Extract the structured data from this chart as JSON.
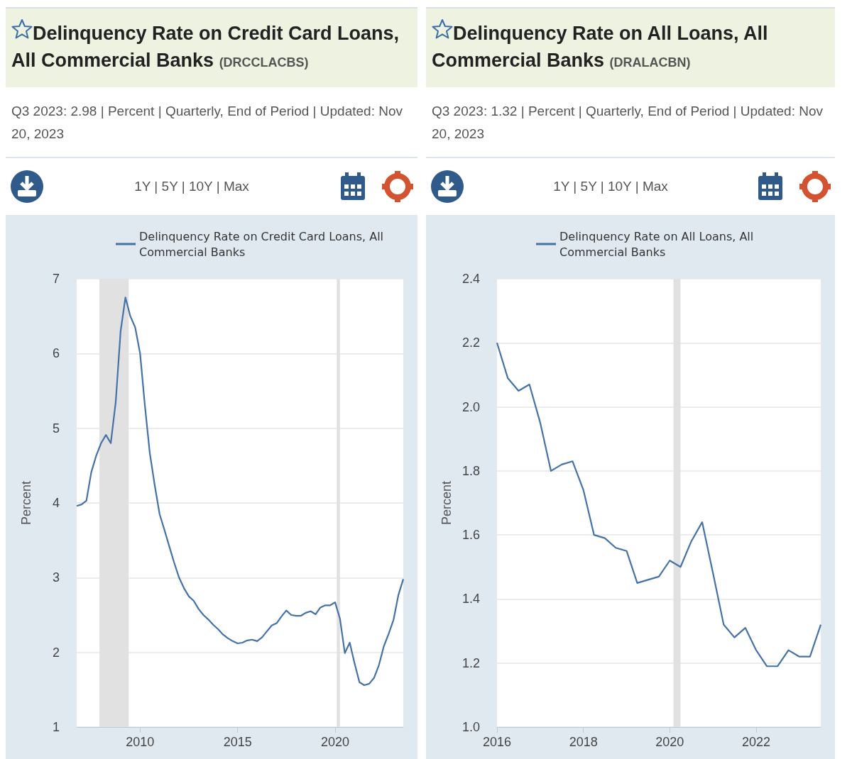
{
  "chart_data": [
    {
      "type": "line",
      "title": "Delinquency Rate on Credit Card Loans, All Commercial Banks",
      "subtitle": "(DRCCLACBS)",
      "annotations": [
        "Q3 2023: 2.98 | Percent | Quarterly, End of Period | Updated: Nov 20, 2023",
        "1Y | 5Y | 10Y | Max"
      ],
      "ylabel": "Percent",
      "x": [
        "2006-10",
        "2007-01",
        "2007-04",
        "2007-07",
        "2007-10",
        "2008-01",
        "2008-04",
        "2008-07",
        "2008-10",
        "2009-01",
        "2009-04",
        "2009-07",
        "2009-10",
        "2010-01",
        "2010-04",
        "2010-07",
        "2010-10",
        "2011-01",
        "2011-04",
        "2011-07",
        "2011-10",
        "2012-01",
        "2012-04",
        "2012-07",
        "2012-10",
        "2013-01",
        "2013-04",
        "2013-07",
        "2013-10",
        "2014-01",
        "2014-04",
        "2014-07",
        "2014-10",
        "2015-01",
        "2015-04",
        "2015-07",
        "2015-10",
        "2016-01",
        "2016-04",
        "2016-07",
        "2016-10",
        "2017-01",
        "2017-04",
        "2017-07",
        "2017-10",
        "2018-01",
        "2018-04",
        "2018-07",
        "2018-10",
        "2019-01",
        "2019-04",
        "2019-07",
        "2019-10",
        "2020-01",
        "2020-04",
        "2020-07",
        "2020-10",
        "2021-01",
        "2021-04",
        "2021-07",
        "2021-10",
        "2022-01",
        "2022-04",
        "2022-07",
        "2022-10",
        "2023-01",
        "2023-04",
        "2023-07"
      ],
      "series": [
        {
          "name": "Delinquency Rate on Credit Card Loans, All Commercial Banks",
          "color": "#4572a7",
          "values": [
            3.96,
            3.98,
            4.03,
            4.41,
            4.63,
            4.8,
            4.91,
            4.8,
            5.35,
            6.3,
            6.75,
            6.5,
            6.35,
            6.0,
            5.3,
            4.67,
            4.24,
            3.85,
            3.64,
            3.42,
            3.2,
            3.0,
            2.86,
            2.75,
            2.69,
            2.58,
            2.5,
            2.44,
            2.37,
            2.31,
            2.24,
            2.19,
            2.15,
            2.12,
            2.13,
            2.16,
            2.17,
            2.15,
            2.2,
            2.28,
            2.36,
            2.39,
            2.48,
            2.56,
            2.5,
            2.49,
            2.49,
            2.53,
            2.55,
            2.51,
            2.6,
            2.63,
            2.63,
            2.67,
            2.45,
            1.99,
            2.13,
            1.85,
            1.6,
            1.56,
            1.58,
            1.66,
            1.83,
            2.08,
            2.25,
            2.44,
            2.77,
            2.98
          ]
        }
      ],
      "xlim": [
        "2006-10",
        "2023-07"
      ],
      "xticks": [
        "2010",
        "2015",
        "2020"
      ],
      "ylim": [
        1,
        7
      ],
      "yticks": [
        1,
        2,
        3,
        4,
        5,
        6,
        7
      ],
      "bands": [
        {
          "axis": "x",
          "from": "2007-12",
          "to": "2009-06",
          "color": "#e1e1e1"
        },
        {
          "axis": "x",
          "from": "2020-02",
          "to": "2020-04",
          "color": "#e1e1e1"
        }
      ],
      "grid": "y",
      "legend": "top"
    },
    {
      "type": "line",
      "title": "Delinquency Rate on All Loans, All Commercial Banks",
      "subtitle": "(DRALACBN)",
      "annotations": [
        "Q3 2023: 1.32 | Percent | Quarterly, End of Period | Updated: Nov 20, 2023",
        "1Y | 5Y | 10Y | Max"
      ],
      "ylabel": "Percent",
      "x": [
        "2016-01",
        "2016-04",
        "2016-07",
        "2016-10",
        "2017-01",
        "2017-04",
        "2017-07",
        "2017-10",
        "2018-01",
        "2018-04",
        "2018-07",
        "2018-10",
        "2019-01",
        "2019-04",
        "2019-07",
        "2019-10",
        "2020-01",
        "2020-04",
        "2020-07",
        "2020-10",
        "2021-01",
        "2021-04",
        "2021-07",
        "2021-10",
        "2022-01",
        "2022-04",
        "2022-07",
        "2022-10",
        "2023-01",
        "2023-04",
        "2023-07"
      ],
      "series": [
        {
          "name": "Delinquency Rate on All Loans, All Commercial Banks",
          "color": "#4572a7",
          "values": [
            2.2,
            2.09,
            2.05,
            2.07,
            1.95,
            1.8,
            1.82,
            1.83,
            1.74,
            1.6,
            1.59,
            1.56,
            1.55,
            1.45,
            1.46,
            1.47,
            1.52,
            1.5,
            1.58,
            1.64,
            1.48,
            1.32,
            1.28,
            1.31,
            1.24,
            1.19,
            1.19,
            1.24,
            1.22,
            1.22,
            1.32
          ]
        }
      ],
      "xlim": [
        "2016-01",
        "2023-07"
      ],
      "xticks": [
        "2016",
        "2018",
        "2020",
        "2022"
      ],
      "ylim": [
        1.0,
        2.4
      ],
      "yticks": [
        {
          "value": 1.0,
          "label": "1.0"
        },
        1.2,
        1.4,
        1.6,
        1.8,
        {
          "value": 2.0,
          "label": "2.0"
        },
        2.2,
        2.4
      ],
      "bands": [
        {
          "axis": "x",
          "from": "2020-02",
          "to": "2020-04",
          "color": "#e1e1e1"
        }
      ],
      "grid": "y",
      "legend": "top"
    }
  ]
}
